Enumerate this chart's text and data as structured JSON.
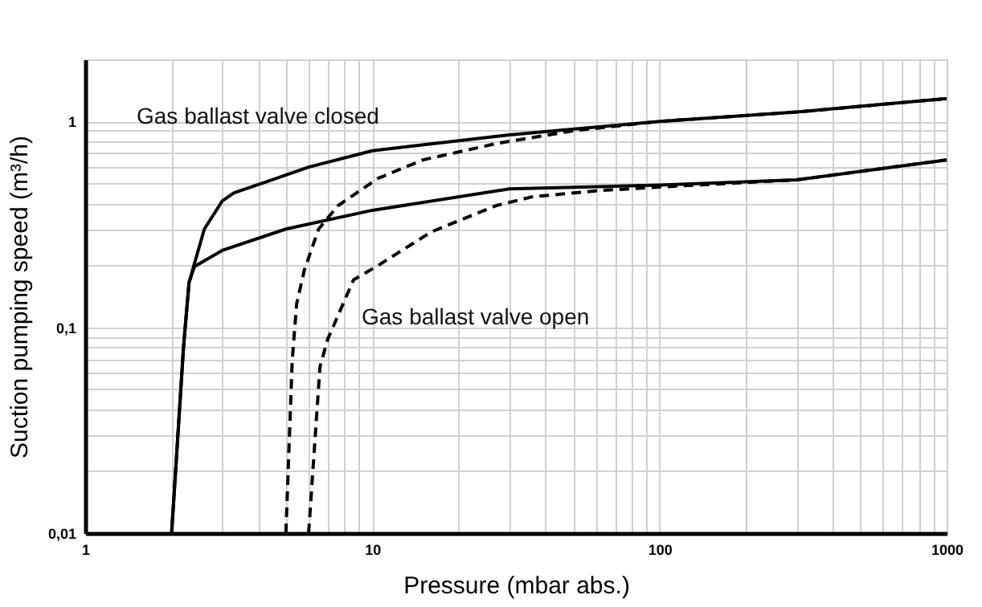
{
  "chart_data": {
    "type": "line",
    "xlabel": "Pressure (mbar abs.)",
    "ylabel": "Suction pumping speed (m³/h)",
    "annotations": [
      "Gas ballast valve closed",
      "Gas ballast valve open"
    ],
    "log": "xy",
    "grid": true,
    "marker": "none",
    "xlim": [
      1,
      1000
    ],
    "ylim": [
      0.01,
      2
    ],
    "xticks": [
      1,
      {
        "value": 2,
        "label": null
      },
      {
        "value": 3,
        "label": null
      },
      {
        "value": 4,
        "label": null
      },
      {
        "value": 5,
        "label": null
      },
      {
        "value": 6,
        "label": null
      },
      {
        "value": 7,
        "label": null
      },
      {
        "value": 8,
        "label": null
      },
      {
        "value": 9,
        "label": null
      },
      10,
      {
        "value": 20,
        "label": null
      },
      {
        "value": 30,
        "label": null
      },
      {
        "value": 40,
        "label": null
      },
      {
        "value": 50,
        "label": null
      },
      {
        "value": 60,
        "label": null
      },
      {
        "value": 70,
        "label": null
      },
      {
        "value": 80,
        "label": null
      },
      {
        "value": 90,
        "label": null
      },
      100,
      {
        "value": 200,
        "label": null
      },
      {
        "value": 300,
        "label": null
      },
      {
        "value": 400,
        "label": null
      },
      {
        "value": 500,
        "label": null
      },
      {
        "value": 600,
        "label": null
      },
      {
        "value": 700,
        "label": null
      },
      {
        "value": 800,
        "label": null
      },
      {
        "value": 900,
        "label": null
      },
      1000
    ],
    "yticks": [
      {
        "value": 0.01,
        "label": "0,01"
      },
      {
        "value": 0.02,
        "label": null
      },
      {
        "value": 0.03,
        "label": null
      },
      {
        "value": 0.04,
        "label": null
      },
      {
        "value": 0.05,
        "label": null
      },
      {
        "value": 0.06,
        "label": null
      },
      {
        "value": 0.07,
        "label": null
      },
      {
        "value": 0.08,
        "label": null
      },
      {
        "value": 0.09,
        "label": null
      },
      {
        "value": 0.1,
        "label": "0,1"
      },
      {
        "value": 0.2,
        "label": null
      },
      {
        "value": 0.3,
        "label": null
      },
      {
        "value": 0.4,
        "label": null
      },
      {
        "value": 0.5,
        "label": null
      },
      {
        "value": 0.6,
        "label": null
      },
      {
        "value": 0.7,
        "label": null
      },
      {
        "value": 0.8,
        "label": null
      },
      {
        "value": 0.9,
        "label": null
      },
      1,
      {
        "value": 2,
        "label": null
      }
    ],
    "series": [
      {
        "color": "#000000",
        "line_style": "solid",
        "x": [
          2,
          2.2,
          2.3,
          2.6,
          3,
          3.3,
          4.3,
          6,
          10,
          30,
          100,
          300,
          1000
        ],
        "values": [
          0.01,
          0.08,
          0.165,
          0.3,
          0.41,
          0.45,
          0.51,
          0.6,
          0.72,
          0.86,
          1.0,
          1.11,
          1.29
        ]
      },
      {
        "color": "#000000",
        "line_style": "solid",
        "x": [
          2,
          2.2,
          2.3,
          2.4,
          3,
          5,
          10,
          30,
          100,
          300,
          1000
        ],
        "values": [
          0.01,
          0.08,
          0.165,
          0.197,
          0.236,
          0.3,
          0.37,
          0.47,
          0.49,
          0.52,
          0.65
        ]
      },
      {
        "color": "#000000",
        "line_style": "dashed",
        "x": [
          5,
          5.26,
          5.45,
          5.8,
          6.5,
          7.6,
          10.5,
          15,
          27,
          50,
          100,
          300,
          1000
        ],
        "values": [
          0.01,
          0.069,
          0.13,
          0.19,
          0.3,
          0.39,
          0.53,
          0.65,
          0.78,
          0.9,
          1.0,
          1.11,
          1.29
        ]
      },
      {
        "color": "#000000",
        "line_style": "dashed",
        "x": [
          6,
          6.57,
          6.98,
          8.6,
          10.5,
          16,
          27,
          36,
          60,
          100,
          300,
          1000
        ],
        "values": [
          0.01,
          0.064,
          0.087,
          0.17,
          0.2,
          0.29,
          0.39,
          0.43,
          0.46,
          0.48,
          0.52,
          0.65
        ]
      }
    ]
  }
}
